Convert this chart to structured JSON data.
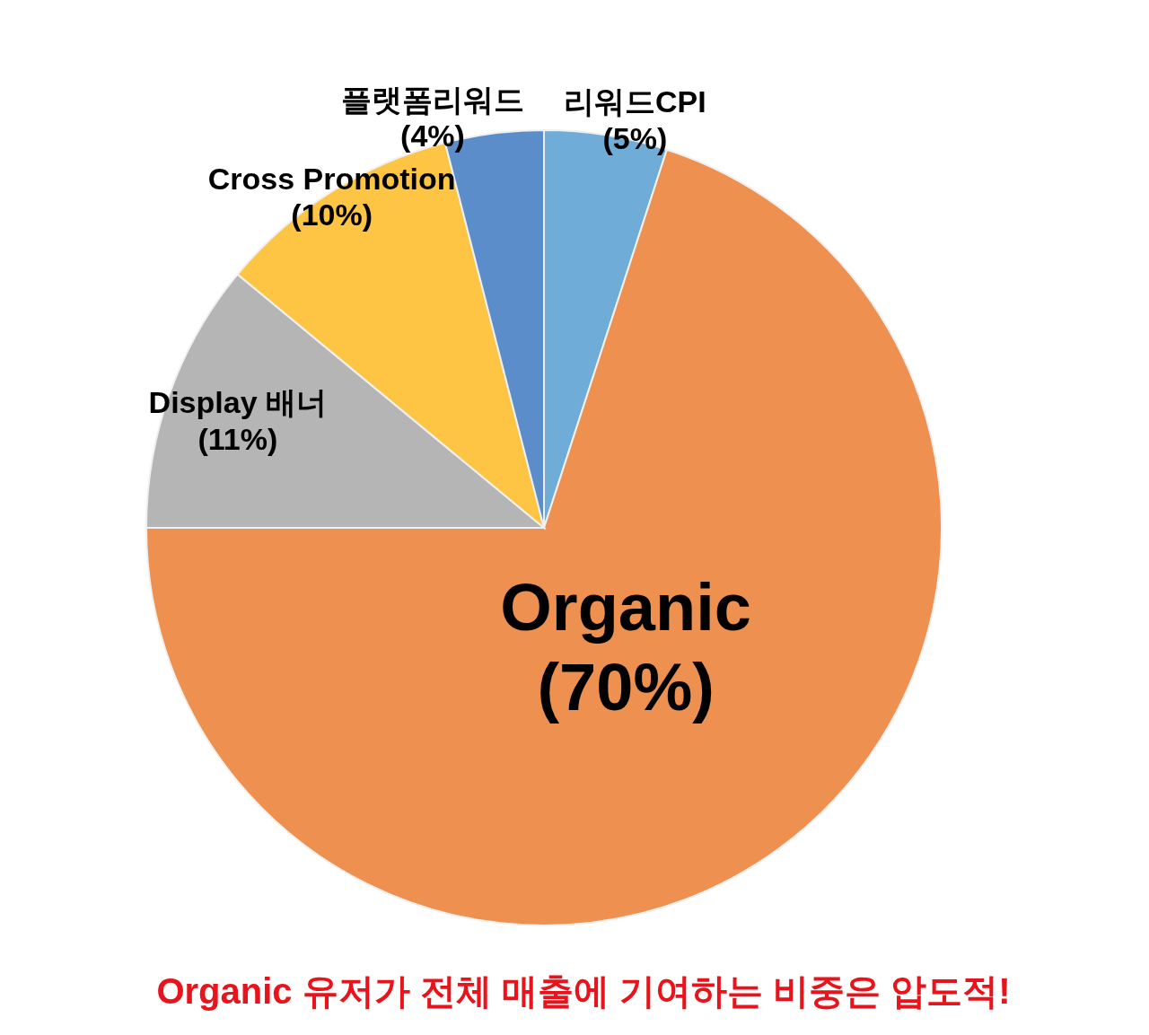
{
  "chart_data": {
    "type": "pie",
    "categories": [
      "리워드CPI",
      "Organic",
      "Display 배너",
      "Cross Promotion",
      "플랫폼리워드"
    ],
    "values": [
      5,
      70,
      11,
      10,
      4
    ],
    "value_labels": [
      "(5%)",
      "(70%)",
      "(11%)",
      "(10%)",
      "(4%)"
    ],
    "colors": [
      "#70acd8",
      "#ee9150",
      "#b5b5b5",
      "#fdc543",
      "#5b8dcb"
    ],
    "legend": false,
    "annotations": [
      "Organic 유저가 전체 매출에 기여하는 비중은 압도적!"
    ]
  }
}
